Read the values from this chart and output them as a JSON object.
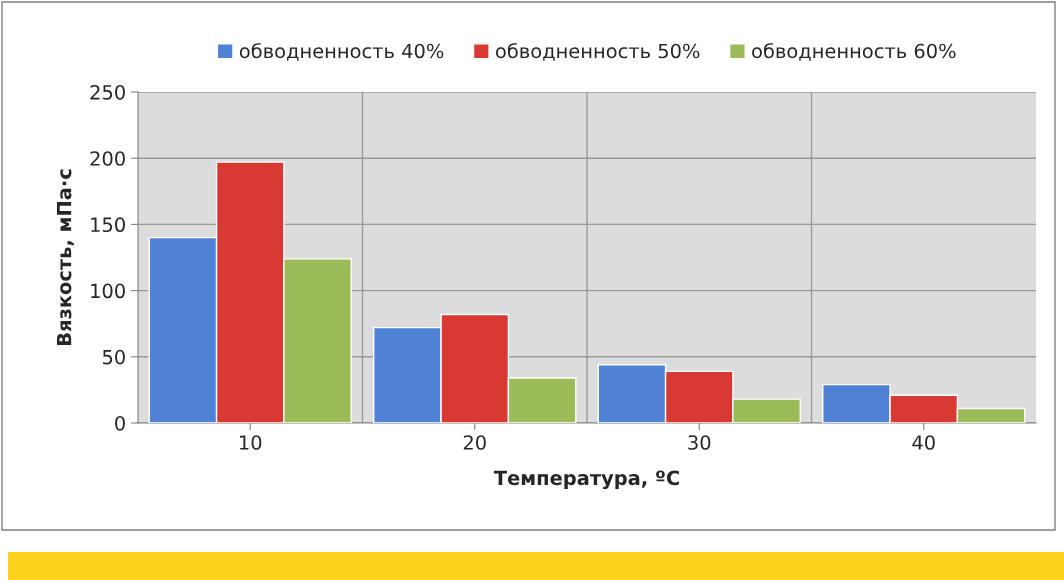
{
  "chart_data": {
    "type": "bar",
    "xlabel": "Температура, ºС",
    "ylabel": "Вязкость, мПа·с",
    "categories": [
      "10",
      "20",
      "30",
      "40"
    ],
    "series": [
      {
        "name": "обводненность 40%",
        "color": "#4f81d5",
        "values": [
          140,
          72,
          44,
          29
        ]
      },
      {
        "name": "обводненность 50%",
        "color": "#d83a33",
        "values": [
          197,
          82,
          39,
          21
        ]
      },
      {
        "name": "обводненность 60%",
        "color": "#9bbb59",
        "values": [
          124,
          34,
          18,
          11
        ]
      }
    ],
    "ylim": [
      0,
      250
    ],
    "yticks": [
      0,
      50,
      100,
      150,
      200,
      250
    ],
    "grid": true,
    "legend": "top"
  }
}
